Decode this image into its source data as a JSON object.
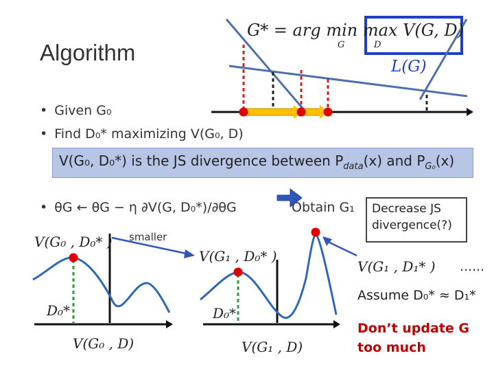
{
  "slide": {
    "title": "Algorithm",
    "objective": "G* = arg min max V(G, D)",
    "objective_sub_g": "G",
    "objective_sub_d": "D",
    "loss_label": "L(G)",
    "bullets": {
      "b1": "Given G₀",
      "b2": "Find D₀* maximizing V(G₀, D)",
      "b3_update": "θG ← θG − η ∂V(G, D₀*)/∂θG",
      "b3_obtain": "Obtain G₁"
    },
    "highlight": "V(G₀, D₀*) is the JS divergence between P",
    "highlight_sub1": "data",
    "highlight_mid": "(x) and P",
    "highlight_sub2": "G₀",
    "highlight_end": "(x)",
    "decrease_note": "Decrease JS divergence(?)",
    "smaller_label": "smaller",
    "plots": {
      "left_top_label": "V(G₀ , D₀* )",
      "left_x_label": "D₀*",
      "left_bottom_label": "V(G₀ , D)",
      "mid_top_label": "V(G₁ , D₀* )",
      "mid_x_label": "D₀*",
      "mid_bottom_label": "V(G₁ , D)",
      "right_top_label": "V(G₁ , D₁* )",
      "right_ellipsis": "……"
    },
    "assume_text": "Assume D₀* ≈ D₁*",
    "warning": "Don’t update G too much"
  },
  "colors": {
    "highlight_band": "#b7c6e6",
    "loss_line": "#4e6fae",
    "curve": "#2e66b8",
    "red_dot": "#e00000",
    "green_dash": "#2e9e48",
    "arrow_fill": "#ffc000",
    "box_border": "#1f3fc8",
    "warning_text": "#c00000"
  }
}
